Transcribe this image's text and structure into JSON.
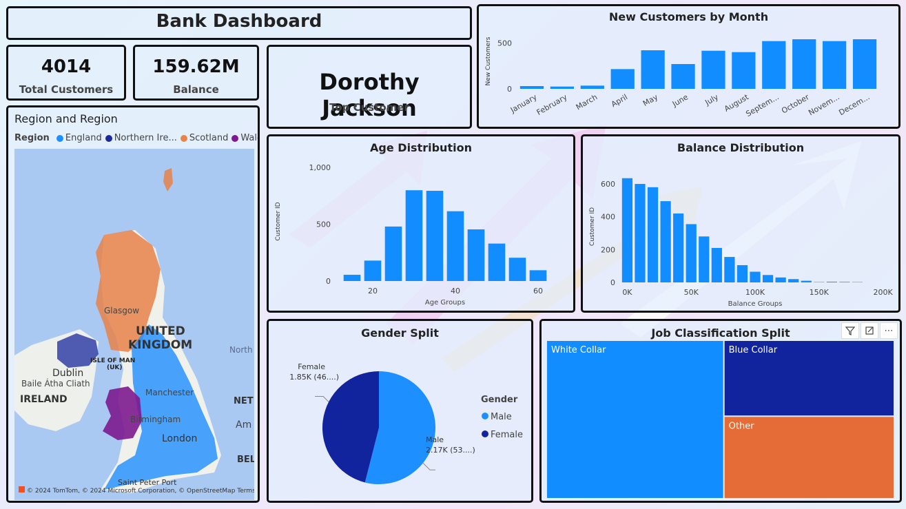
{
  "header": {
    "title": "Bank Dashboard"
  },
  "kpis": {
    "total_customers": {
      "value": "4014",
      "label": "Total Customers"
    },
    "balance": {
      "value": "159.62M",
      "label": "Balance"
    },
    "top_customer": {
      "value": "Dorothy Jackson",
      "label": "Top Customer"
    }
  },
  "map": {
    "title": "Region and Region",
    "legend_title": "Region",
    "legend": [
      {
        "label": "England",
        "color": "#1e8fff"
      },
      {
        "label": "Northern Ire...",
        "color": "#1a2a9c"
      },
      {
        "label": "Scotland",
        "color": "#e8834a"
      },
      {
        "label": "Wales",
        "color": "#7c1a8f"
      }
    ],
    "labels": {
      "uk1": "UNITED",
      "uk2": "KINGDOM",
      "ireland": "IRELAND",
      "dublin": "Dublin",
      "baile": "Baile Átha Cliath",
      "glasgow": "Glasgow",
      "manchester": "Manchester",
      "birmingham": "Birmingham",
      "london": "London",
      "isle": "ISLE OF MAN",
      "isle2": "(UK)",
      "north": "North",
      "net": "NET",
      "am": "Am",
      "bel": "BEL",
      "saint": "Saint Peter Port"
    },
    "attribution": "© 2024 TomTom, © 2024 Microsoft Corporation, © OpenStreetMap  Terms"
  },
  "chart_data": [
    {
      "id": "new_customers",
      "type": "bar",
      "title": "New Customers by Month",
      "xlabel": "",
      "ylabel": "New Customers",
      "categories": [
        "January",
        "February",
        "March",
        "April",
        "May",
        "June",
        "July",
        "August",
        "Septem...",
        "October",
        "Novem...",
        "Decem..."
      ],
      "values": [
        30,
        25,
        35,
        215,
        420,
        270,
        415,
        400,
        520,
        540,
        520,
        540
      ],
      "yticks": [
        0,
        500
      ],
      "ylim": [
        0,
        600
      ]
    },
    {
      "id": "age",
      "type": "bar",
      "title": "Age Distribution",
      "xlabel": "Age Groups",
      "ylabel": "Customer ID",
      "x": [
        15,
        20,
        25,
        30,
        35,
        40,
        45,
        50,
        55,
        60
      ],
      "values": [
        55,
        180,
        480,
        800,
        795,
        615,
        455,
        330,
        205,
        95
      ],
      "xticks": [
        20,
        40,
        60
      ],
      "yticks": [
        0,
        500,
        1000
      ],
      "ytick_labels": [
        "0",
        "500",
        "1,000"
      ],
      "xlim": [
        11.5,
        63.5
      ],
      "ylim": [
        0,
        1050
      ]
    },
    {
      "id": "balance",
      "type": "bar",
      "title": "Balance Distribution",
      "xlabel": "Balance Groups",
      "ylabel": "Customer ID",
      "x": [
        0,
        10000,
        20000,
        30000,
        40000,
        50000,
        60000,
        70000,
        80000,
        90000,
        100000,
        110000,
        120000,
        130000,
        140000,
        150000,
        160000,
        170000,
        180000,
        190000
      ],
      "values": [
        635,
        600,
        580,
        495,
        420,
        355,
        280,
        210,
        155,
        105,
        65,
        45,
        30,
        20,
        10,
        2,
        4,
        3,
        2,
        0
      ],
      "xticks": [
        0,
        50000,
        100000,
        150000,
        200000
      ],
      "xtick_labels": [
        "0K",
        "50K",
        "100K",
        "150K",
        "200K"
      ],
      "yticks": [
        0,
        200,
        400,
        600
      ],
      "xlim": [
        -4000,
        204000
      ],
      "ylim": [
        0,
        680
      ]
    },
    {
      "id": "gender",
      "type": "pie",
      "title": "Gender Split",
      "legend_title": "Gender",
      "slices": [
        {
          "label": "Male",
          "value": 2170,
          "display": "2.17K (53....)",
          "color": "#1e8fff"
        },
        {
          "label": "Female",
          "value": 1850,
          "display": "1.85K (46....)",
          "color": "#12239e"
        }
      ]
    },
    {
      "id": "job",
      "type": "treemap",
      "title": "Job Classification Split",
      "items": [
        {
          "label": "White Collar",
          "value": 2000,
          "color": "#118dff"
        },
        {
          "label": "Blue Collar",
          "value": 920,
          "color": "#12239e"
        },
        {
          "label": "Other",
          "value": 1000,
          "color": "#e66c37"
        }
      ]
    }
  ]
}
